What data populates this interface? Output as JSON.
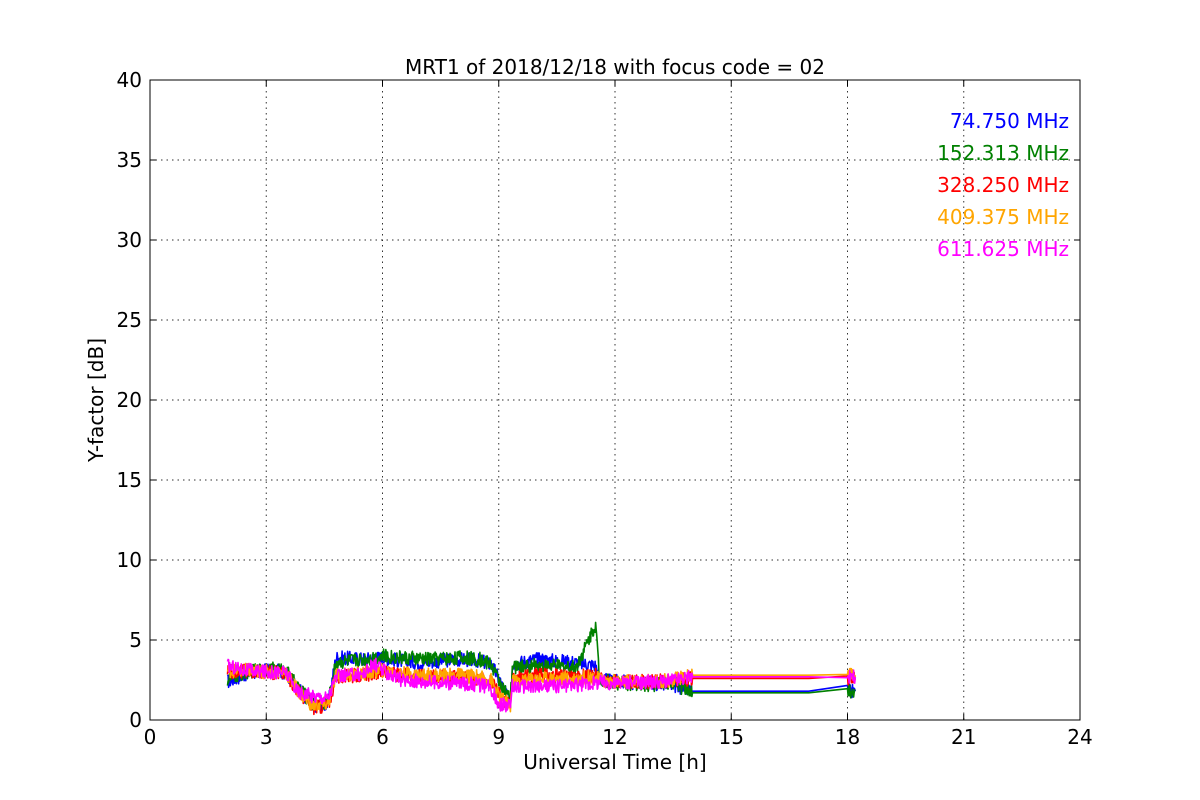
{
  "chart_data": {
    "type": "line",
    "title": "MRT1 of 2018/12/18 with focus code = 02",
    "xlabel": "Universal Time [h]",
    "ylabel": "Y-factor [dB]",
    "xlim": [
      0,
      24
    ],
    "ylim": [
      0,
      40
    ],
    "xticks": [
      0,
      3,
      6,
      9,
      12,
      15,
      18,
      21,
      24
    ],
    "yticks": [
      0,
      5,
      10,
      15,
      20,
      25,
      30,
      35,
      40
    ],
    "grid": true,
    "legend_position": "top-right",
    "series": [
      {
        "name": "74.750 MHz",
        "color": "#0000ff",
        "points": [
          [
            2.0,
            2.4
          ],
          [
            2.5,
            2.9
          ],
          [
            3.0,
            3.1
          ],
          [
            3.5,
            3.0
          ],
          [
            3.8,
            2.0
          ],
          [
            4.2,
            0.9
          ],
          [
            4.6,
            1.0
          ],
          [
            4.8,
            3.9
          ],
          [
            5.5,
            3.8
          ],
          [
            6.0,
            3.9
          ],
          [
            6.5,
            3.7
          ],
          [
            7.0,
            3.6
          ],
          [
            8.0,
            3.8
          ],
          [
            8.5,
            3.7
          ],
          [
            8.8,
            3.5
          ],
          [
            9.0,
            2.6
          ],
          [
            9.3,
            1.0
          ],
          [
            9.35,
            3.5
          ],
          [
            10.0,
            3.8
          ],
          [
            11.0,
            3.6
          ],
          [
            11.5,
            3.4
          ],
          [
            11.6,
            2.5
          ],
          [
            12.0,
            2.4
          ],
          [
            13.0,
            2.3
          ],
          [
            13.5,
            2.2
          ],
          [
            14.0,
            1.8
          ],
          [
            15.0,
            1.8
          ],
          [
            16.0,
            1.8
          ],
          [
            17.0,
            1.8
          ],
          [
            18.0,
            1.8
          ],
          [
            18.2,
            1.8
          ]
        ]
      },
      {
        "name": "152.313 MHz",
        "color": "#008000",
        "points": [
          [
            2.0,
            2.5
          ],
          [
            2.5,
            3.0
          ],
          [
            3.0,
            3.2
          ],
          [
            3.5,
            3.1
          ],
          [
            3.8,
            2.1
          ],
          [
            4.2,
            1.0
          ],
          [
            4.6,
            1.1
          ],
          [
            4.8,
            3.6
          ],
          [
            5.5,
            3.8
          ],
          [
            6.0,
            4.0
          ],
          [
            6.5,
            3.9
          ],
          [
            7.0,
            3.8
          ],
          [
            8.0,
            3.9
          ],
          [
            8.5,
            3.8
          ],
          [
            8.8,
            3.5
          ],
          [
            9.0,
            2.5
          ],
          [
            9.3,
            1.2
          ],
          [
            9.35,
            3.3
          ],
          [
            10.0,
            3.4
          ],
          [
            11.0,
            3.3
          ],
          [
            11.5,
            6.0
          ],
          [
            11.6,
            2.6
          ],
          [
            12.0,
            2.3
          ],
          [
            13.0,
            2.2
          ],
          [
            13.5,
            2.3
          ],
          [
            14.0,
            1.7
          ],
          [
            15.0,
            1.7
          ],
          [
            16.0,
            1.7
          ],
          [
            17.0,
            1.7
          ],
          [
            18.0,
            1.7
          ],
          [
            18.2,
            1.9
          ]
        ]
      },
      {
        "name": "328.250 MHz",
        "color": "#ff0000",
        "points": [
          [
            2.0,
            3.0
          ],
          [
            2.5,
            3.1
          ],
          [
            3.0,
            3.0
          ],
          [
            3.5,
            2.9
          ],
          [
            3.8,
            1.9
          ],
          [
            4.2,
            0.8
          ],
          [
            4.6,
            0.9
          ],
          [
            4.8,
            2.7
          ],
          [
            5.5,
            2.8
          ],
          [
            6.0,
            3.0
          ],
          [
            6.5,
            2.8
          ],
          [
            7.0,
            2.8
          ],
          [
            8.0,
            2.7
          ],
          [
            8.5,
            2.6
          ],
          [
            8.8,
            2.4
          ],
          [
            9.0,
            1.6
          ],
          [
            9.3,
            0.8
          ],
          [
            9.35,
            2.6
          ],
          [
            10.0,
            2.8
          ],
          [
            11.0,
            2.7
          ],
          [
            11.5,
            2.8
          ],
          [
            11.6,
            2.5
          ],
          [
            12.0,
            2.4
          ],
          [
            13.0,
            2.4
          ],
          [
            13.5,
            2.5
          ],
          [
            14.0,
            2.6
          ],
          [
            15.0,
            2.6
          ],
          [
            16.0,
            2.6
          ],
          [
            17.0,
            2.6
          ],
          [
            18.0,
            2.6
          ],
          [
            18.2,
            2.6
          ]
        ]
      },
      {
        "name": "409.375 MHz",
        "color": "#ffa500",
        "points": [
          [
            2.0,
            3.1
          ],
          [
            2.5,
            3.1
          ],
          [
            3.0,
            3.0
          ],
          [
            3.5,
            3.0
          ],
          [
            3.8,
            1.9
          ],
          [
            4.2,
            0.9
          ],
          [
            4.6,
            1.0
          ],
          [
            4.8,
            2.8
          ],
          [
            5.5,
            2.9
          ],
          [
            6.0,
            3.1
          ],
          [
            6.5,
            2.9
          ],
          [
            7.0,
            2.8
          ],
          [
            8.0,
            2.8
          ],
          [
            8.5,
            2.7
          ],
          [
            8.8,
            2.5
          ],
          [
            9.0,
            1.5
          ],
          [
            9.3,
            0.9
          ],
          [
            9.35,
            2.4
          ],
          [
            10.0,
            2.6
          ],
          [
            11.0,
            2.6
          ],
          [
            11.5,
            2.7
          ],
          [
            11.6,
            2.5
          ],
          [
            12.0,
            2.4
          ],
          [
            13.0,
            2.4
          ],
          [
            13.5,
            2.5
          ],
          [
            14.0,
            2.8
          ],
          [
            15.0,
            2.8
          ],
          [
            16.0,
            2.8
          ],
          [
            17.0,
            2.8
          ],
          [
            18.0,
            2.8
          ],
          [
            18.2,
            2.8
          ]
        ]
      },
      {
        "name": "611.625 MHz",
        "color": "#ff00ff",
        "points": [
          [
            2.0,
            3.4
          ],
          [
            2.5,
            3.1
          ],
          [
            3.0,
            3.0
          ],
          [
            3.5,
            3.0
          ],
          [
            3.8,
            1.8
          ],
          [
            4.2,
            1.5
          ],
          [
            4.6,
            1.4
          ],
          [
            4.8,
            2.7
          ],
          [
            5.5,
            2.9
          ],
          [
            5.8,
            3.5
          ],
          [
            6.0,
            3.1
          ],
          [
            6.5,
            2.5
          ],
          [
            7.0,
            2.4
          ],
          [
            8.0,
            2.3
          ],
          [
            8.5,
            2.2
          ],
          [
            8.8,
            2.0
          ],
          [
            9.0,
            1.0
          ],
          [
            9.3,
            0.9
          ],
          [
            9.35,
            2.1
          ],
          [
            10.0,
            2.1
          ],
          [
            11.0,
            2.2
          ],
          [
            11.5,
            2.3
          ],
          [
            11.6,
            2.4
          ],
          [
            12.0,
            2.3
          ],
          [
            13.0,
            2.4
          ],
          [
            13.5,
            2.5
          ],
          [
            14.0,
            2.7
          ],
          [
            15.0,
            2.7
          ],
          [
            16.0,
            2.7
          ],
          [
            17.0,
            2.7
          ],
          [
            18.0,
            2.7
          ],
          [
            18.2,
            2.7
          ]
        ]
      }
    ]
  }
}
